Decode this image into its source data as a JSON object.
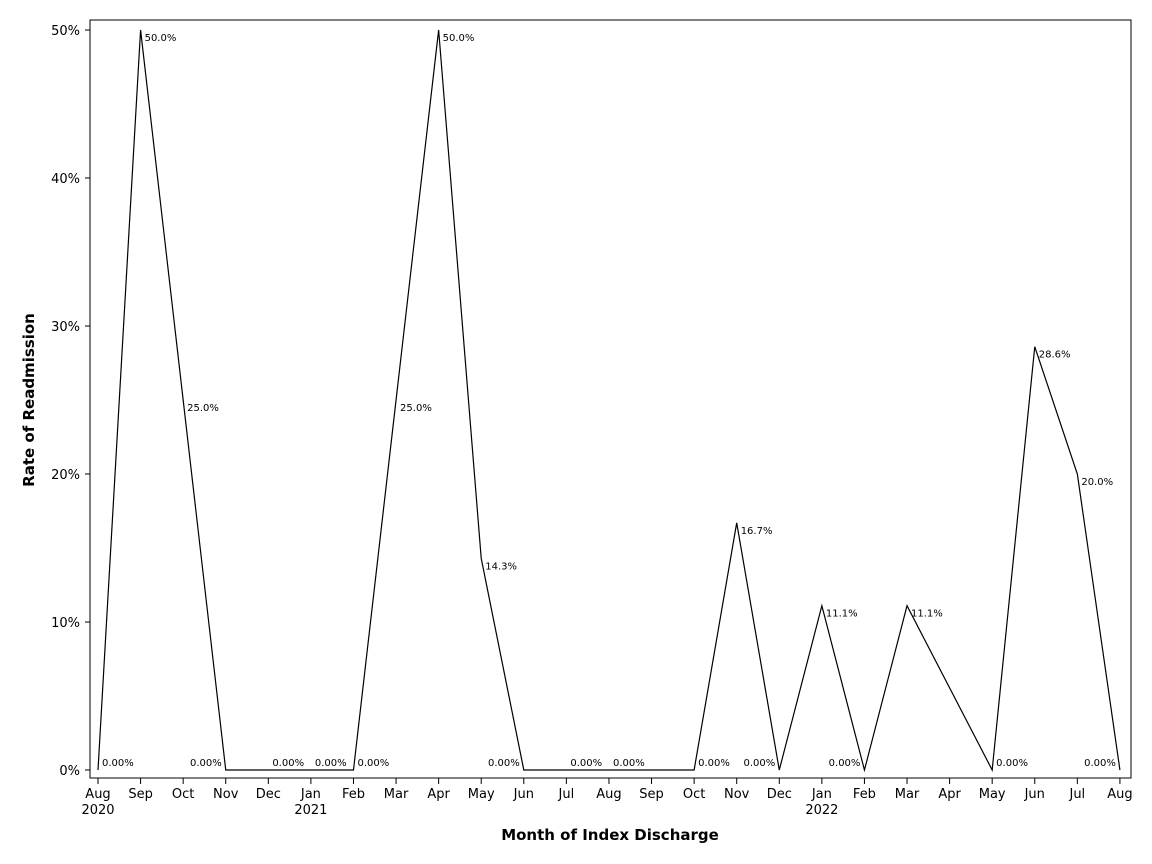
{
  "chart_data": {
    "type": "line",
    "title": "",
    "xlabel": "Month of Index Discharge",
    "ylabel": "Rate of Readmission",
    "ylim": [
      0,
      50
    ],
    "grid": false,
    "x": [
      "2020-08",
      "2020-09",
      "2020-10",
      "2020-11",
      "2020-12",
      "2021-01",
      "2021-02",
      "2021-03",
      "2021-04",
      "2021-05",
      "2021-06",
      "2021-07",
      "2021-08",
      "2021-09",
      "2021-10",
      "2021-11",
      "2021-12",
      "2022-01",
      "2022-02",
      "2022-03",
      "2022-04",
      "2022-05",
      "2022-06",
      "2022-07",
      "2022-08"
    ],
    "x_tick_labels": [
      "Aug",
      "Sep",
      "Oct",
      "Nov",
      "Dec",
      "Jan",
      "Feb",
      "Mar",
      "Apr",
      "May",
      "Jun",
      "Jul",
      "Aug",
      "Sep",
      "Oct",
      "Nov",
      "Dec",
      "Jan",
      "Feb",
      "Mar",
      "Apr",
      "May",
      "Jun",
      "Jul",
      "Aug"
    ],
    "x_year_labels": [
      {
        "month": "2020-08",
        "label": "2020"
      },
      {
        "month": "2021-01",
        "label": "2021"
      },
      {
        "month": "2022-01",
        "label": "2022"
      }
    ],
    "y_ticks": [
      0,
      10,
      20,
      30,
      40,
      50
    ],
    "y_tick_labels": [
      "0%",
      "10%",
      "20%",
      "30%",
      "40%",
      "50%"
    ],
    "series": [
      {
        "values": [
          0,
          50,
          25,
          0,
          0,
          0,
          0,
          25,
          50,
          14.3,
          0,
          0,
          0,
          null,
          0,
          16.7,
          0,
          11.1,
          0,
          11.1,
          null,
          0,
          28.6,
          20,
          0
        ],
        "point_labels": [
          "0.00%",
          "50.0%",
          "25.0%",
          "0.00%",
          "0.00%",
          "0.00%",
          "0.00%",
          "25.0%",
          "50.0%",
          "14.3%",
          "0.00%",
          "0.00%",
          "0.00%",
          null,
          "0.00%",
          "16.7%",
          "0.00%",
          "11.1%",
          "0.00%",
          "11.1%",
          null,
          "0.00%",
          "28.6%",
          "20.0%",
          "0.00%"
        ],
        "color": "#000000"
      }
    ]
  }
}
